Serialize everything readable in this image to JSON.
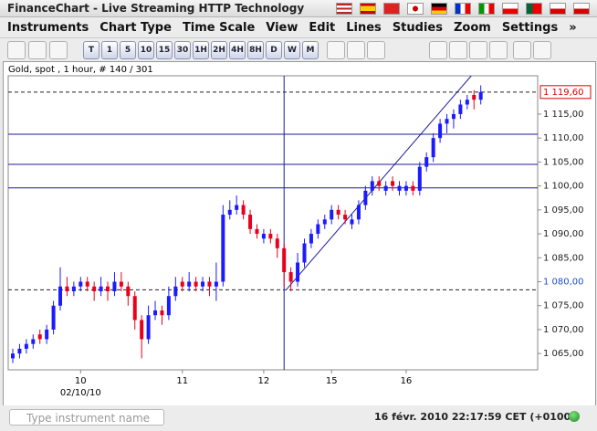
{
  "window": {
    "title": "FinanceChart - Live Streaming HTTP Technology"
  },
  "menu": [
    "Instruments",
    "Chart Type",
    "Time Scale",
    "View",
    "Edit",
    "Lines",
    "Studies",
    "Zoom",
    "Settings",
    "»"
  ],
  "toolbar": [
    "T",
    "1",
    "5",
    "10",
    "15",
    "30",
    "1H",
    "2H",
    "4H",
    "8H",
    "D",
    "W",
    "M"
  ],
  "chart_data": {
    "type": "candlestick",
    "title": "Gold, spot , 1 hour, # 140 / 301",
    "up_color": "#1b1bff",
    "down_color": "#e8001c",
    "line_color": "#1c1c9c",
    "ylim": [
      1061.6,
      1123.0
    ],
    "yticks": [
      {
        "value": 1065,
        "label": "1 065,00"
      },
      {
        "value": 1070,
        "label": "1 070,00"
      },
      {
        "value": 1075,
        "label": "1 075,00"
      },
      {
        "value": 1080,
        "label": "1 080,00"
      },
      {
        "value": 1085,
        "label": "1 085,00"
      },
      {
        "value": 1090,
        "label": "1 090,00"
      },
      {
        "value": 1095,
        "label": "1 095,00"
      },
      {
        "value": 1100,
        "label": "1 100,00"
      },
      {
        "value": 1105,
        "label": "1 105,00"
      },
      {
        "value": 1110,
        "label": "1 110,00"
      },
      {
        "value": 1115,
        "label": "1 115,00"
      }
    ],
    "highlight_tick": 3,
    "xticks": [
      {
        "value": 10,
        "label": "10"
      },
      {
        "value": 25,
        "label": "11"
      },
      {
        "value": 37,
        "label": "12"
      },
      {
        "value": 47,
        "label": "15"
      },
      {
        "value": 58,
        "label": "16"
      }
    ],
    "x_sublabel": "02/10/10",
    "last_price": {
      "value": 1119.6,
      "label": "1 119,60"
    },
    "levels": [
      1110.8,
      1104.5,
      1099.6
    ],
    "dashed_levels": [
      1119.6,
      1078.3
    ],
    "vline": 40,
    "trendline": [
      [
        40.3,
        1078.3
      ],
      [
        67.6,
        1123.0
      ]
    ],
    "ohlc": [
      [
        1064,
        1066,
        1063,
        1065
      ],
      [
        1065,
        1067,
        1064,
        1066
      ],
      [
        1066,
        1068,
        1065,
        1067
      ],
      [
        1067,
        1069,
        1066,
        1068
      ],
      [
        1069,
        1070,
        1067,
        1068
      ],
      [
        1068,
        1071,
        1067,
        1070
      ],
      [
        1070,
        1076,
        1069,
        1075
      ],
      [
        1075,
        1083,
        1074,
        1079
      ],
      [
        1079,
        1081,
        1077,
        1078
      ],
      [
        1078,
        1080,
        1077,
        1079
      ],
      [
        1079,
        1081,
        1078,
        1080
      ],
      [
        1080,
        1081,
        1078,
        1079
      ],
      [
        1079,
        1080,
        1076,
        1078
      ],
      [
        1078,
        1081,
        1077,
        1079
      ],
      [
        1079,
        1080,
        1076,
        1078
      ],
      [
        1078,
        1082,
        1077,
        1080
      ],
      [
        1080,
        1082,
        1078,
        1079
      ],
      [
        1079,
        1080,
        1075,
        1077
      ],
      [
        1077,
        1078,
        1070,
        1072
      ],
      [
        1072,
        1073,
        1064,
        1068
      ],
      [
        1068,
        1075,
        1067,
        1073
      ],
      [
        1073,
        1076,
        1072,
        1074
      ],
      [
        1074,
        1075,
        1071,
        1073
      ],
      [
        1073,
        1079,
        1072,
        1077
      ],
      [
        1077,
        1081,
        1076,
        1079
      ],
      [
        1080,
        1081,
        1078,
        1079
      ],
      [
        1079,
        1082,
        1078,
        1080
      ],
      [
        1080,
        1081,
        1078,
        1079
      ],
      [
        1079,
        1081,
        1078,
        1080
      ],
      [
        1080,
        1081,
        1077,
        1079
      ],
      [
        1079,
        1084,
        1076,
        1080
      ],
      [
        1080,
        1096,
        1079,
        1094
      ],
      [
        1094,
        1097,
        1093,
        1095
      ],
      [
        1095,
        1098,
        1094,
        1096
      ],
      [
        1096,
        1097,
        1093,
        1094
      ],
      [
        1094,
        1095,
        1090,
        1091
      ],
      [
        1091,
        1092,
        1089,
        1090
      ],
      [
        1089,
        1091,
        1088,
        1090
      ],
      [
        1090,
        1091,
        1088,
        1089
      ],
      [
        1089,
        1090,
        1085,
        1087
      ],
      [
        1087,
        1088,
        1079,
        1082
      ],
      [
        1082,
        1083,
        1078,
        1080
      ],
      [
        1080,
        1086,
        1079,
        1084
      ],
      [
        1084,
        1089,
        1083,
        1088
      ],
      [
        1088,
        1091,
        1087,
        1090
      ],
      [
        1090,
        1093,
        1089,
        1092
      ],
      [
        1092,
        1094,
        1091,
        1093
      ],
      [
        1093,
        1096,
        1092,
        1095
      ],
      [
        1095,
        1096,
        1093,
        1094
      ],
      [
        1094,
        1095,
        1092,
        1093
      ],
      [
        1092,
        1094,
        1091,
        1093
      ],
      [
        1093,
        1097,
        1092,
        1096
      ],
      [
        1096,
        1100,
        1095,
        1099
      ],
      [
        1099,
        1102,
        1098,
        1101
      ],
      [
        1101,
        1102,
        1099,
        1100
      ],
      [
        1099,
        1101,
        1098,
        1100
      ],
      [
        1101,
        1102,
        1099,
        1100
      ],
      [
        1099,
        1101,
        1098,
        1100
      ],
      [
        1099,
        1101,
        1098,
        1100
      ],
      [
        1100,
        1101,
        1098,
        1099
      ],
      [
        1099,
        1105,
        1098,
        1104
      ],
      [
        1104,
        1107,
        1103,
        1106
      ],
      [
        1106,
        1111,
        1105,
        1110
      ],
      [
        1110,
        1114,
        1109,
        1113
      ],
      [
        1113,
        1115,
        1111,
        1114
      ],
      [
        1114,
        1116,
        1112,
        1115
      ],
      [
        1115,
        1118,
        1114,
        1117
      ],
      [
        1117,
        1119,
        1116,
        1118
      ],
      [
        1119,
        1120,
        1116,
        1118
      ],
      [
        1118,
        1121,
        1117,
        1119.6
      ]
    ]
  },
  "status": {
    "search_placeholder": "Type instrument name",
    "datetime": "16 févr. 2010 22:17:59 CET (+0100)"
  }
}
